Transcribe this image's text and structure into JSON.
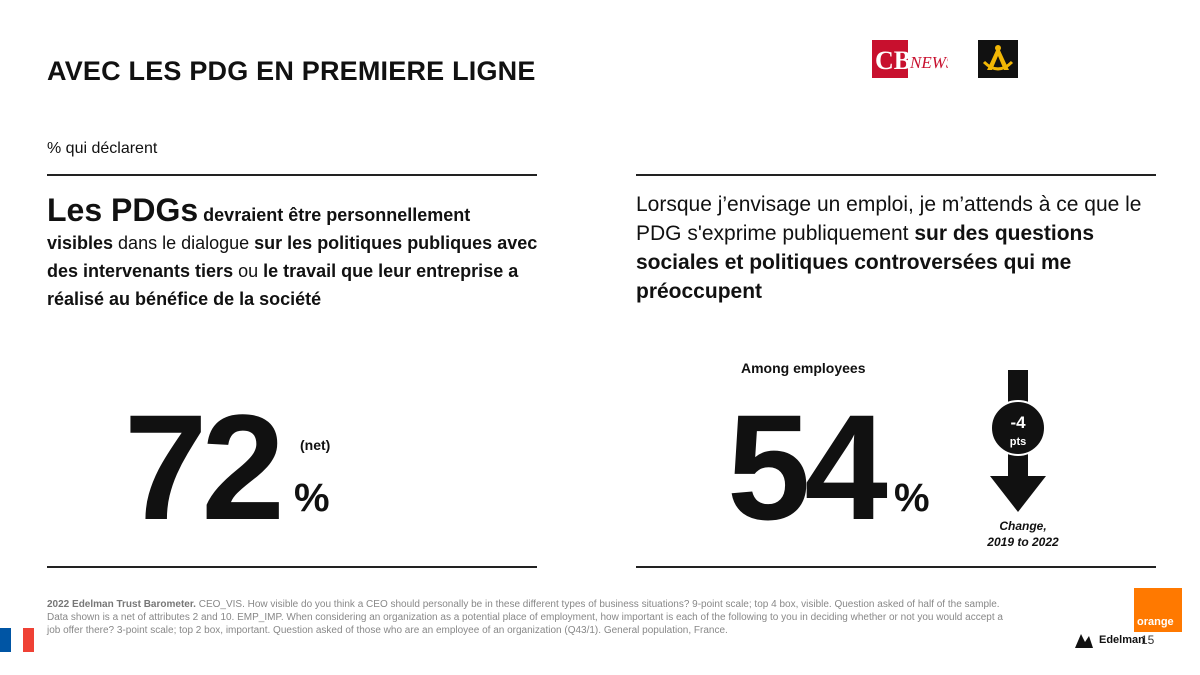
{
  "header": {
    "title": "AVEC LES PDG EN PREMIERE LIGNE",
    "logo_cb_text": "CB NEWS"
  },
  "subtitle": "% qui déclarent",
  "left": {
    "q_big": "Les PDGs",
    "q_p1": " devraient être personnellement",
    "q_p2": "visibles",
    "q_p3": " dans le dialogue ",
    "q_p4": "sur les politiques publiques avec des intervenants tiers",
    "q_p5": " ou ",
    "q_p6": "le travail que leur entreprise a réalisé au bénéfice de la société",
    "value": "72",
    "net_label": "(net)",
    "percent": "%"
  },
  "right": {
    "q_p1": "Lorsque j’envisage un emploi, je m’attends à ce que le PDG s'exprime publiquement ",
    "q_p2": "sur des questions sociales et politiques controversées qui me préoccupent",
    "among_label": "Among employees",
    "value": "54",
    "percent": "%",
    "change_value": "-4",
    "change_unit": "pts",
    "change_label_1": "Change,",
    "change_label_2": "2019 to 2022"
  },
  "footnote": {
    "source": "2022 Edelman Trust Barometer.",
    "text": " CEO_VIS. How visible do you think a CEO should personally be in these different types of business situations? 9-point scale; top 4 box, visible. Question asked of half of the sample. Data shown is a net of attributes 2 and 10. EMP_IMP. When considering an organization as a potential place of employment, how important is each of the following to you in deciding whether or not you would accept a job offer there? 3-point scale; top 2 box, important. Question asked of those who are an employee of an organization (Q43/1). General population, France."
  },
  "branding": {
    "orange_label": "orange",
    "edelman_label": "Edelman",
    "page_number": "15"
  },
  "colors": {
    "orange": "#ff7900",
    "cb_red": "#c8102e",
    "flag_blue": "#0055a4",
    "flag_red": "#ef4135"
  }
}
